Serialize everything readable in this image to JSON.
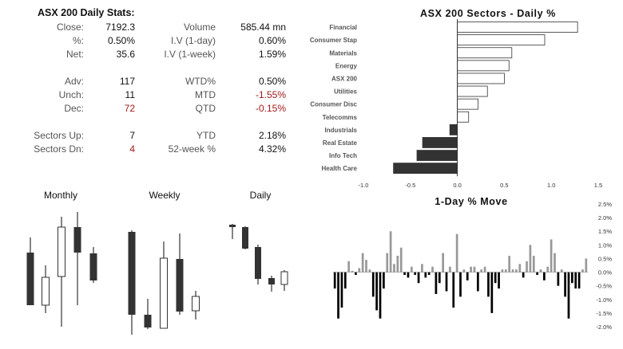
{
  "stats": {
    "title": "ASX 200 Daily Stats:",
    "left_rows": [
      {
        "label": "Close:",
        "value": "7192.3",
        "neg": false
      },
      {
        "label": "%:",
        "value": "0.50%",
        "neg": false
      },
      {
        "label": "Net:",
        "value": "35.6",
        "neg": false
      },
      {
        "label": "Adv:",
        "value": "117",
        "neg": false
      },
      {
        "label": "Unch:",
        "value": "11",
        "neg": false
      },
      {
        "label": "Dec:",
        "value": "72",
        "neg": true
      },
      {
        "label": "Sectors Up:",
        "value": "7",
        "neg": false
      },
      {
        "label": "Sectors Dn:",
        "value": "4",
        "neg": true
      }
    ],
    "right_rows": [
      {
        "label": "Volume",
        "value": "585.44  mn",
        "neg": false
      },
      {
        "label": "I.V (1-day)",
        "value": "0.60%",
        "neg": false
      },
      {
        "label": "I.V (1-week)",
        "value": "1.59%",
        "neg": false
      },
      {
        "label": "WTD%",
        "value": "0.50%",
        "neg": false
      },
      {
        "label": "MTD",
        "value": "-1.55%",
        "neg": true
      },
      {
        "label": "QTD",
        "value": "-0.15%",
        "neg": true
      },
      {
        "label": "YTD",
        "value": "2.18%",
        "neg": false
      },
      {
        "label": "52-week %",
        "value": "4.32%",
        "neg": false
      }
    ]
  },
  "candles": {
    "monthly_title": "Monthly",
    "weekly_title": "Weekly",
    "daily_title": "Daily"
  },
  "colors": {
    "dark": "#333333",
    "grey": "#999999",
    "black": "#000000",
    "negative": "#a11a1a"
  },
  "chart_data": [
    {
      "type": "bar",
      "orientation": "horizontal",
      "title": "ASX 200 Sectors - Daily %",
      "categories": [
        "Financial",
        "Consumer Stap",
        "Materials",
        "Energy",
        "ASX 200",
        "Utilities",
        "Consumer Disc",
        "Telecomms",
        "Industrials",
        "Real Estate",
        "Info Tech",
        "Health Care"
      ],
      "values": [
        1.28,
        0.93,
        0.58,
        0.55,
        0.5,
        0.32,
        0.22,
        0.12,
        -0.08,
        -0.37,
        -0.43,
        -0.68
      ],
      "xlim": [
        -1.0,
        1.5
      ],
      "xticks": [
        "-1.0",
        "-0.5",
        "0.0",
        "0.5",
        "1.0",
        "1.5"
      ]
    },
    {
      "type": "bar",
      "title": "1-Day % Move",
      "ylim": [
        -2.0,
        2.5
      ],
      "yticks": [
        "2.5%",
        "2.0%",
        "1.5%",
        "1.0%",
        "0.5%",
        "0.0%",
        "-0.5%",
        "-1.0%",
        "-1.5%",
        "-2.0%"
      ],
      "values": [
        -0.6,
        -1.7,
        -1.3,
        -0.6,
        0.4,
        0.05,
        -0.1,
        0.15,
        0.7,
        0.45,
        0.1,
        -0.9,
        -1.4,
        -1.7,
        -0.6,
        0.7,
        1.5,
        0.3,
        0.6,
        0.9,
        -0.1,
        -0.2,
        0.2,
        -0.1,
        -0.4,
        0.3,
        -0.2,
        -0.1,
        0.2,
        -0.8,
        -0.4,
        0.7,
        -0.7,
        0.2,
        -1.3,
        1.4,
        -0.9,
        0.1,
        -0.3,
        0.2,
        0.2,
        -0.7,
        0.1,
        0.2,
        -0.9,
        -1.5,
        -0.4,
        -0.6,
        0.1,
        0.1,
        0.6,
        0.1,
        0.1,
        0.3,
        -0.2,
        0.4,
        1.0,
        0.6,
        -0.1,
        0.1,
        -0.3,
        0.2,
        1.2,
        0.7,
        -0.5,
        0.1,
        -0.9,
        -1.7,
        -0.4,
        -0.6,
        -0.6,
        0.1,
        0.5
      ]
    }
  ]
}
